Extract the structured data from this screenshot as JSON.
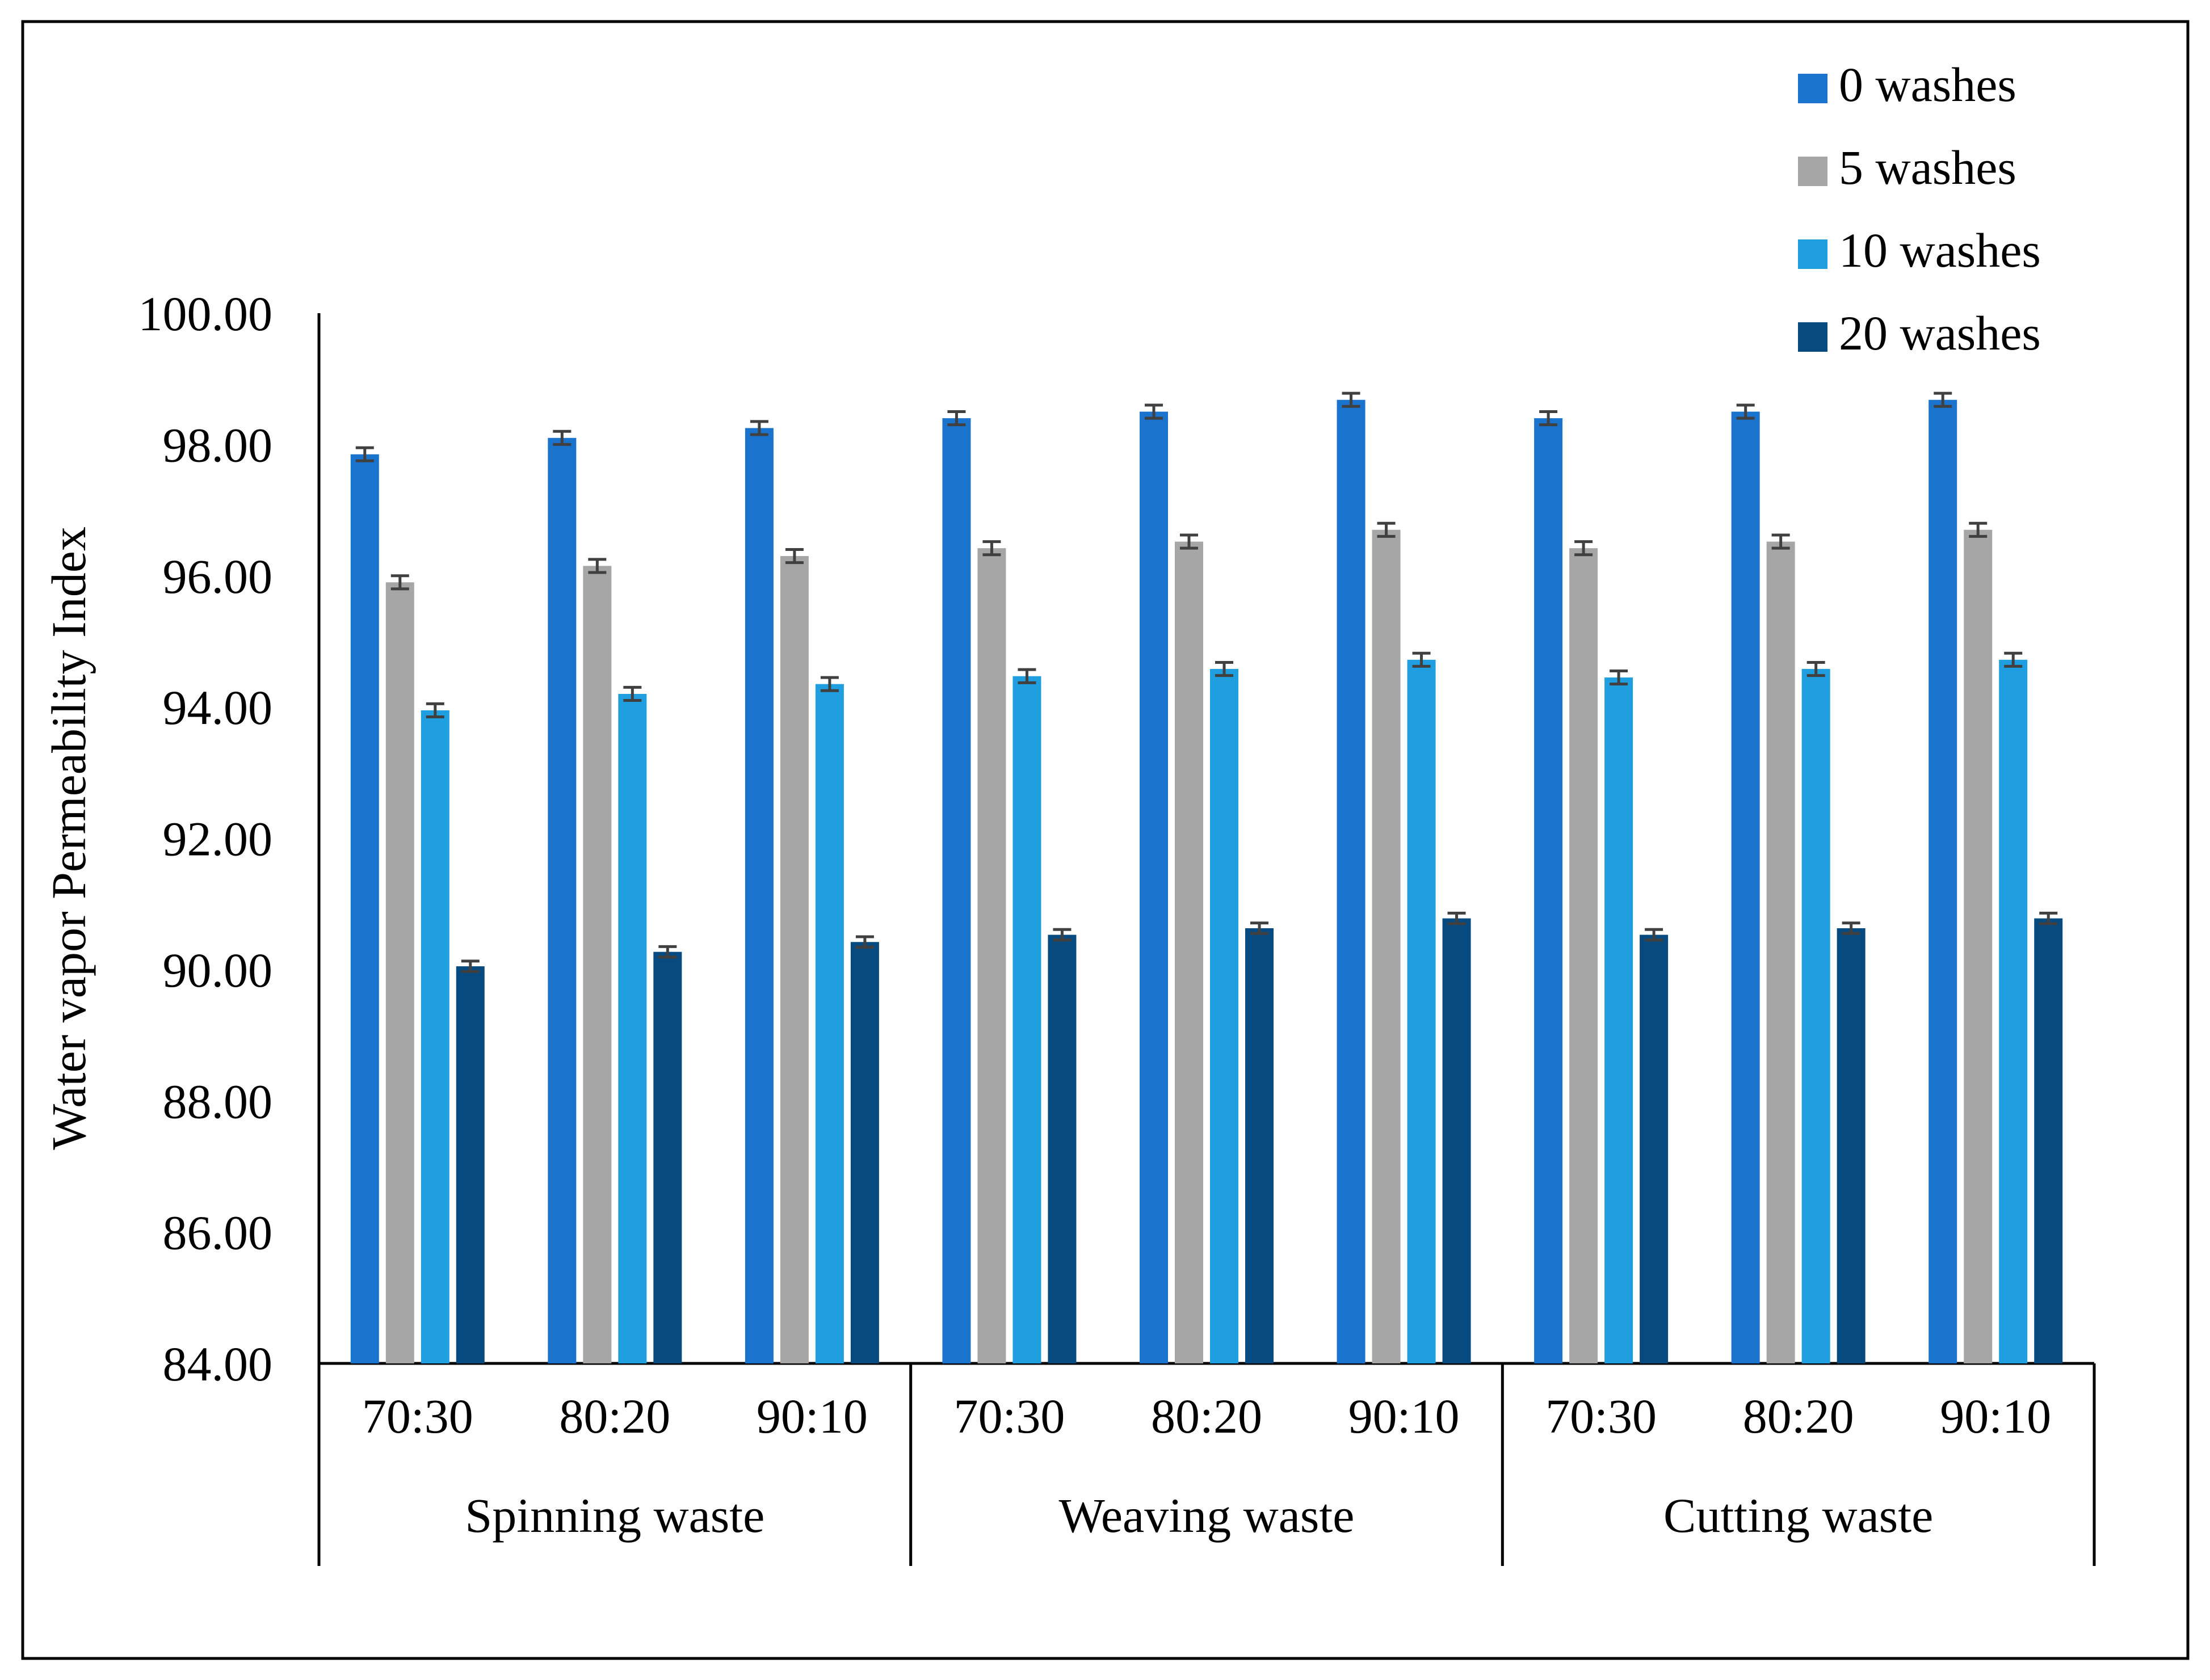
{
  "chart_data": {
    "type": "bar",
    "title": "",
    "xlabel": "",
    "ylabel": "Water vapor Permeability Index",
    "ylim": [
      84,
      100
    ],
    "yticks": [
      "84.00",
      "86.00",
      "88.00",
      "90.00",
      "92.00",
      "94.00",
      "96.00",
      "98.00",
      "100.00"
    ],
    "grid": false,
    "legend_position": "top-right",
    "groups": [
      {
        "label": "Spinning waste",
        "categories": [
          "70:30",
          "80:20",
          "90:10"
        ]
      },
      {
        "label": "Weaving waste",
        "categories": [
          "70:30",
          "80:20",
          "90:10"
        ]
      },
      {
        "label": "Cutting waste",
        "categories": [
          "70:30",
          "80:20",
          "90:10"
        ]
      }
    ],
    "series": [
      {
        "name": "0 washes",
        "color": "#1a73cc",
        "values": [
          97.85,
          98.1,
          98.25,
          98.4,
          98.5,
          98.68,
          98.4,
          98.5,
          98.68
        ],
        "errors": [
          0.1,
          0.1,
          0.1,
          0.1,
          0.1,
          0.1,
          0.1,
          0.1,
          0.1
        ]
      },
      {
        "name": "5 washes",
        "color": "#a6a6a6",
        "values": [
          95.9,
          96.15,
          96.3,
          96.42,
          96.52,
          96.7,
          96.42,
          96.52,
          96.7
        ],
        "errors": [
          0.1,
          0.1,
          0.1,
          0.1,
          0.1,
          0.1,
          0.1,
          0.1,
          0.1
        ]
      },
      {
        "name": "10 washes",
        "color": "#1f9fdf",
        "values": [
          93.95,
          94.2,
          94.35,
          94.47,
          94.58,
          94.72,
          94.45,
          94.58,
          94.72
        ],
        "errors": [
          0.1,
          0.1,
          0.1,
          0.1,
          0.1,
          0.1,
          0.1,
          0.1,
          0.1
        ]
      },
      {
        "name": "20 washes",
        "color": "#064a80",
        "values": [
          90.05,
          90.27,
          90.42,
          90.53,
          90.63,
          90.78,
          90.53,
          90.63,
          90.78
        ],
        "errors": [
          0.08,
          0.08,
          0.08,
          0.08,
          0.08,
          0.08,
          0.08,
          0.08,
          0.08
        ]
      }
    ]
  }
}
